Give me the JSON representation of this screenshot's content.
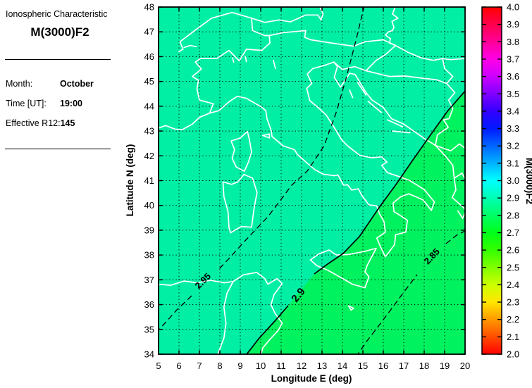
{
  "sidebar": {
    "title": "Ionospheric Characteristic",
    "characteristic": "M(3000)F2",
    "fields": [
      {
        "label": "Month:",
        "value": "October"
      },
      {
        "label": "Time [UT]:",
        "value": "19:00"
      },
      {
        "label": "Effective R12:",
        "value": "145"
      }
    ]
  },
  "chart_data": {
    "type": "contour-map",
    "title": "M(3000)F2",
    "xlabel": "Longitude E (deg)",
    "ylabel": "Latitude N (deg)",
    "xlim": [
      5,
      20
    ],
    "ylim": [
      34,
      48
    ],
    "x_ticks": [
      5,
      6,
      7,
      8,
      9,
      10,
      11,
      12,
      13,
      14,
      15,
      16,
      17,
      18,
      19,
      20
    ],
    "y_ticks": [
      34,
      35,
      36,
      37,
      38,
      39,
      40,
      41,
      42,
      43,
      44,
      45,
      46,
      47,
      48
    ],
    "grid": "dotted",
    "map_region": "Italy and central Mediterranean coastlines and borders drawn in white",
    "fill_bands": [
      {
        "range": [
          2.9,
          3.0
        ],
        "color": "#00efa5",
        "region": "northwest of 2.9 contour"
      },
      {
        "range": [
          2.8,
          2.9
        ],
        "color": "#00f25f",
        "region": "southeast of 2.9 contour"
      }
    ],
    "contours": [
      {
        "label": "2.95",
        "level": 2.95,
        "line": "dashed"
      },
      {
        "label": "2.9",
        "level": 2.9,
        "line": "solid"
      },
      {
        "label": "2.85",
        "level": 2.85,
        "line": "dashed"
      }
    ],
    "colorbar": {
      "label": "M(3000)F2",
      "min": 2.0,
      "max": 4.0,
      "ticks": [
        "2.0",
        "2.1",
        "2.2",
        "2.3",
        "2.4",
        "2.5",
        "2.6",
        "2.7",
        "2.8",
        "2.9",
        "3.0",
        "3.1",
        "3.2",
        "3.3",
        "3.4",
        "3.5",
        "3.6",
        "3.7",
        "3.8",
        "3.9",
        "4.0"
      ],
      "colormap": "hsv"
    }
  }
}
